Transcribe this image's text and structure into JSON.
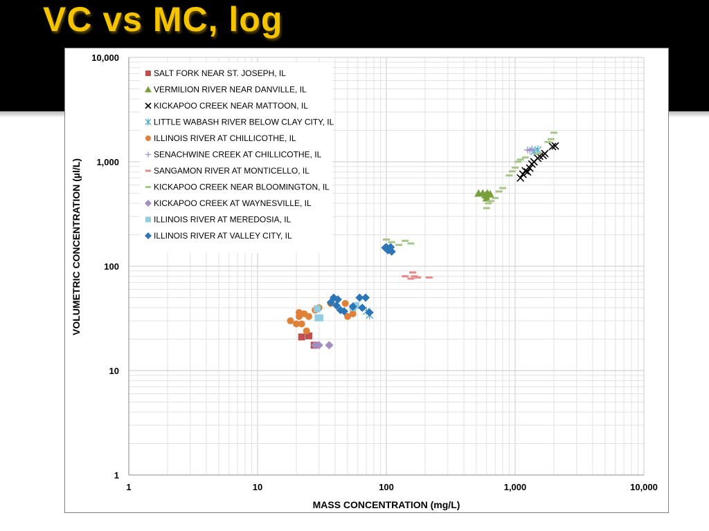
{
  "slide": {
    "title": "VC vs MC, log"
  },
  "chart_data": {
    "type": "scatter",
    "xlabel": "MASS CONCENTRATION  (mg/L)",
    "ylabel": "VOLUMETRIC CONCENTRATION  (µl/L)",
    "x_scale": "log",
    "y_scale": "log",
    "xlim": [
      1,
      10000
    ],
    "ylim": [
      1,
      10000
    ],
    "x_ticks": [
      {
        "v": 1,
        "label": "1"
      },
      {
        "v": 10,
        "label": "10"
      },
      {
        "v": 100,
        "label": "100"
      },
      {
        "v": 1000,
        "label": "1,000"
      },
      {
        "v": 10000,
        "label": "10,000"
      }
    ],
    "y_ticks": [
      {
        "v": 1,
        "label": "1"
      },
      {
        "v": 10,
        "label": "10"
      },
      {
        "v": 100,
        "label": "100"
      },
      {
        "v": 1000,
        "label": "1,000"
      },
      {
        "v": 10000,
        "label": "10,000"
      }
    ],
    "grid": true,
    "legend_position": "top-left",
    "series": [
      {
        "name": "SALT FORK NEAR ST. JOSEPH, IL",
        "marker": "square",
        "color": "#c0504d",
        "points": [
          [
            22,
            21
          ],
          [
            25,
            21.5
          ],
          [
            27.5,
            17.5
          ]
        ]
      },
      {
        "name": "VERMILION RIVER NEAR DANVILLE, IL",
        "marker": "triangle",
        "color": "#77a03b",
        "points": [
          [
            520,
            500
          ],
          [
            560,
            500
          ],
          [
            590,
            480
          ],
          [
            610,
            500
          ],
          [
            600,
            450
          ],
          [
            640,
            490
          ]
        ]
      },
      {
        "name": "KICKAPOO CREEK NEAR MATTOON, IL",
        "marker": "x",
        "color": "#000000",
        "points": [
          [
            1100,
            700
          ],
          [
            1150,
            760
          ],
          [
            1200,
            820
          ],
          [
            1250,
            800
          ],
          [
            1300,
            870
          ],
          [
            1350,
            950
          ],
          [
            1400,
            1000
          ],
          [
            1500,
            1080
          ],
          [
            1550,
            1130
          ],
          [
            1650,
            1150
          ],
          [
            1700,
            1200
          ],
          [
            1950,
            1400
          ],
          [
            2050,
            1420
          ]
        ]
      },
      {
        "name": "LITTLE WABASH RIVER BELOW CLAY CITY, IL",
        "marker": "asterisk",
        "color": "#4bacc6",
        "points": [
          [
            70,
            37
          ],
          [
            74,
            34
          ],
          [
            1400,
            1250
          ],
          [
            1500,
            1300
          ]
        ]
      },
      {
        "name": "ILLINOIS RIVER AT CHILLICOTHE, IL",
        "marker": "circle",
        "color": "#e0813a",
        "points": [
          [
            18,
            30
          ],
          [
            20,
            28
          ],
          [
            21,
            33
          ],
          [
            21,
            36
          ],
          [
            22,
            28
          ],
          [
            23,
            35
          ],
          [
            24,
            24
          ],
          [
            25,
            33
          ],
          [
            28,
            38
          ],
          [
            30,
            40
          ],
          [
            37,
            44
          ],
          [
            48,
            44
          ],
          [
            50,
            33
          ],
          [
            55,
            35
          ]
        ]
      },
      {
        "name": "SENACHWINE CREEK AT CHILLICOTHE, IL",
        "marker": "plus",
        "color": "#9d8fc8",
        "points": [
          [
            1250,
            1300
          ],
          [
            1300,
            1280
          ],
          [
            1350,
            1320
          ]
        ]
      },
      {
        "name": "SANGAMON RIVER AT MONTICELLO, IL",
        "marker": "dash",
        "color": "#e6898a",
        "points": [
          [
            140,
            80
          ],
          [
            155,
            76
          ],
          [
            160,
            87
          ],
          [
            165,
            80
          ],
          [
            175,
            78
          ],
          [
            215,
            78
          ]
        ]
      },
      {
        "name": "KICKAPOO CREEK NEAR BLOOMINGTON, IL",
        "marker": "dash",
        "color": "#a9c58a",
        "points": [
          [
            100,
            180
          ],
          [
            110,
            170
          ],
          [
            125,
            160
          ],
          [
            140,
            175
          ],
          [
            155,
            165
          ],
          [
            600,
            360
          ],
          [
            620,
            400
          ],
          [
            650,
            420
          ],
          [
            700,
            450
          ],
          [
            750,
            520
          ],
          [
            800,
            560
          ],
          [
            900,
            740
          ],
          [
            950,
            810
          ],
          [
            1000,
            880
          ],
          [
            1050,
            1000
          ],
          [
            1100,
            1050
          ],
          [
            1200,
            1100
          ],
          [
            1500,
            1200
          ],
          [
            1800,
            1550
          ],
          [
            1900,
            1650
          ],
          [
            2000,
            1900
          ]
        ]
      },
      {
        "name": "KICKAPOO CREEK AT WAYNESVILLE, IL",
        "marker": "diamond",
        "color": "#a48ec1",
        "points": [
          [
            28,
            17.5
          ],
          [
            30,
            17.5
          ],
          [
            36,
            17.5
          ]
        ]
      },
      {
        "name": "ILLINOIS RIVER AT MEREDOSIA, IL",
        "marker": "square",
        "color": "#93cddd",
        "points": [
          [
            29,
            39
          ],
          [
            29.5,
            32
          ],
          [
            30.5,
            32
          ],
          [
            55,
            40
          ],
          [
            58,
            42
          ]
        ]
      },
      {
        "name": "ILLINOIS RIVER AT VALLEY CITY, IL",
        "marker": "diamond",
        "color": "#2e75b6",
        "points": [
          [
            37,
            45
          ],
          [
            39,
            50
          ],
          [
            41,
            42
          ],
          [
            42,
            48
          ],
          [
            44,
            38
          ],
          [
            47,
            37
          ],
          [
            55,
            41
          ],
          [
            62,
            50
          ],
          [
            65,
            40
          ],
          [
            69,
            50
          ],
          [
            74,
            36
          ],
          [
            98,
            150
          ],
          [
            100,
            152
          ],
          [
            103,
            142
          ],
          [
            108,
            152
          ],
          [
            110,
            138
          ]
        ]
      }
    ]
  }
}
